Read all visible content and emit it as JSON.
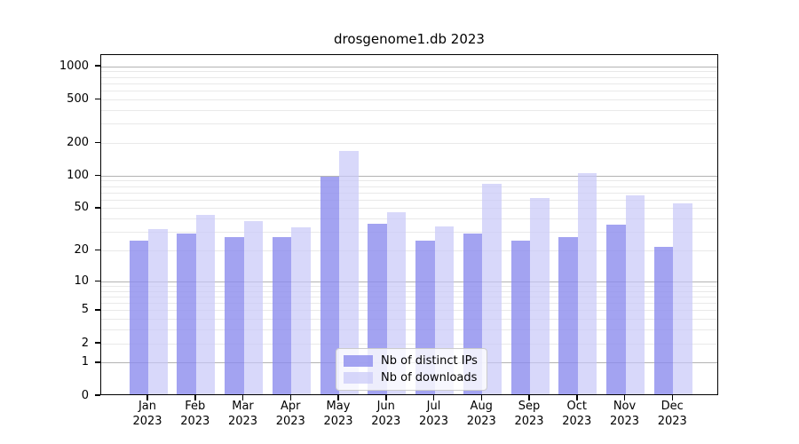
{
  "chart_data": {
    "type": "bar",
    "title": "drosgenome1.db 2023",
    "categories": [
      "Jan",
      "Feb",
      "Mar",
      "Apr",
      "May",
      "Jun",
      "Jul",
      "Aug",
      "Sep",
      "Oct",
      "Nov",
      "Dec"
    ],
    "year_label": "2023",
    "series": [
      {
        "name": "Nb of distinct IPs",
        "color": "rgba(140,140,238,0.8)",
        "values": [
          24,
          28,
          26,
          26,
          96,
          35,
          24,
          28,
          24,
          26,
          34,
          21
        ]
      },
      {
        "name": "Nb of downloads",
        "color": "rgba(200,200,248,0.7)",
        "values": [
          31,
          42,
          37,
          32,
          165,
          45,
          33,
          82,
          60,
          103,
          64,
          54
        ]
      }
    ],
    "y_axis": {
      "scale": "log1p",
      "ticks": [
        0,
        1,
        2,
        5,
        10,
        20,
        50,
        100,
        200,
        500,
        1000
      ],
      "top_value": 1280,
      "major_gridlines": [
        1,
        10,
        100,
        1000
      ],
      "minor_gridlines": [
        2,
        3,
        4,
        5,
        6,
        7,
        8,
        9,
        20,
        30,
        40,
        50,
        60,
        70,
        80,
        90,
        200,
        300,
        400,
        500,
        600,
        700,
        800,
        900
      ]
    },
    "legend": {
      "position": "lower-center"
    },
    "colors": {
      "major_grid": "#b3b3b3",
      "minor_grid": "#e9e9e9",
      "axis": "#000000",
      "background": "#ffffff"
    }
  }
}
